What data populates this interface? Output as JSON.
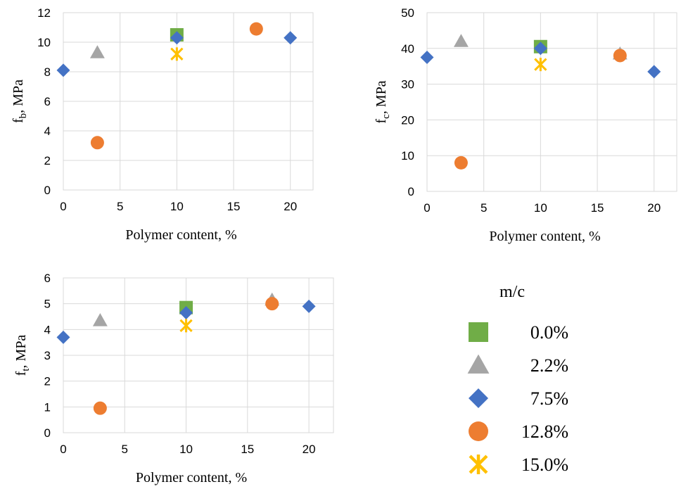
{
  "series_styles": [
    {
      "name": "0.0%",
      "color": "#70AD47",
      "marker": "square"
    },
    {
      "name": "2.2%",
      "color": "#A5A5A5",
      "marker": "triangle"
    },
    {
      "name": "7.5%",
      "color": "#4472C4",
      "marker": "diamond"
    },
    {
      "name": "12.8%",
      "color": "#ED7D31",
      "marker": "circle"
    },
    {
      "name": "15.0%",
      "color": "#FFC000",
      "marker": "asterisk"
    }
  ],
  "legend": {
    "title": "m/c",
    "items": [
      "0.0%",
      "2.2%",
      "7.5%",
      "12.8%",
      "15.0%"
    ]
  },
  "chart_data": [
    {
      "type": "scatter",
      "xlabel": "Polymer content, %",
      "ylabel_main": "f",
      "ylabel_sub": "b",
      "ylabel_unit": ", MPa",
      "xlim": [
        0,
        22
      ],
      "ylim": [
        0,
        12
      ],
      "xticks": [
        0,
        5,
        10,
        15,
        20
      ],
      "yticks": [
        0,
        2,
        4,
        6,
        8,
        10,
        12
      ],
      "grid": true,
      "series": [
        {
          "name": "0.0%",
          "points": [
            [
              10,
              10.5
            ]
          ]
        },
        {
          "name": "2.2%",
          "points": [
            [
              3,
              9.3
            ]
          ]
        },
        {
          "name": "7.5%",
          "points": [
            [
              0,
              8.1
            ],
            [
              10,
              10.3
            ],
            [
              20,
              10.3
            ]
          ]
        },
        {
          "name": "12.8%",
          "points": [
            [
              3,
              3.2
            ],
            [
              17,
              10.9
            ]
          ]
        },
        {
          "name": "15.0%",
          "points": [
            [
              10,
              9.2
            ]
          ]
        }
      ]
    },
    {
      "type": "scatter",
      "xlabel": "Polymer content, %",
      "ylabel_main": "f",
      "ylabel_sub": "c",
      "ylabel_unit": ", MPa",
      "xlim": [
        0,
        22
      ],
      "ylim": [
        0,
        50
      ],
      "xticks": [
        0,
        5,
        10,
        15,
        20
      ],
      "yticks": [
        0,
        10,
        20,
        30,
        40,
        50
      ],
      "grid": true,
      "series": [
        {
          "name": "0.0%",
          "points": [
            [
              10,
              40.5
            ]
          ]
        },
        {
          "name": "2.2%",
          "points": [
            [
              3,
              42
            ],
            [
              17,
              38.5
            ]
          ]
        },
        {
          "name": "7.5%",
          "points": [
            [
              0,
              37.5
            ],
            [
              10,
              40
            ],
            [
              20,
              33.5
            ]
          ]
        },
        {
          "name": "12.8%",
          "points": [
            [
              3,
              8
            ],
            [
              17,
              38
            ]
          ]
        },
        {
          "name": "15.0%",
          "points": [
            [
              10,
              35.5
            ]
          ]
        }
      ]
    },
    {
      "type": "scatter",
      "xlabel": "Polymer content, %",
      "ylabel_main": "f",
      "ylabel_sub": "t",
      "ylabel_unit": ", MPa",
      "xlim": [
        0,
        22
      ],
      "ylim": [
        0,
        6
      ],
      "xticks": [
        0,
        5,
        10,
        15,
        20
      ],
      "yticks": [
        0,
        1,
        2,
        3,
        4,
        5,
        6
      ],
      "grid": true,
      "series": [
        {
          "name": "0.0%",
          "points": [
            [
              10,
              4.85
            ]
          ]
        },
        {
          "name": "2.2%",
          "points": [
            [
              3,
              4.35
            ],
            [
              17,
              5.15
            ]
          ]
        },
        {
          "name": "7.5%",
          "points": [
            [
              0,
              3.7
            ],
            [
              10,
              4.65
            ],
            [
              20,
              4.9
            ]
          ]
        },
        {
          "name": "12.8%",
          "points": [
            [
              3,
              0.95
            ],
            [
              17,
              5.0
            ]
          ]
        },
        {
          "name": "15.0%",
          "points": [
            [
              10,
              4.15
            ]
          ]
        }
      ]
    }
  ]
}
